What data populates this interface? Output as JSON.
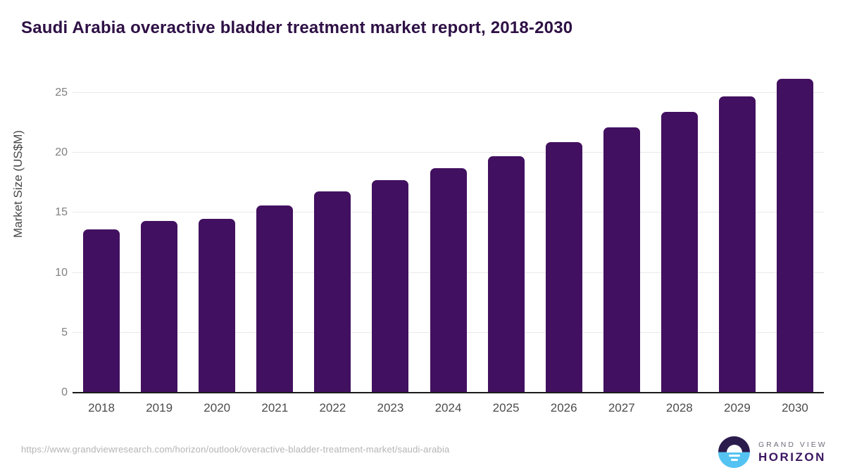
{
  "header": {
    "title": "Saudi Arabia overactive bladder treatment market report, 2018-2030"
  },
  "chart_data": {
    "type": "bar",
    "title": "Saudi Arabia overactive bladder treatment market report, 2018-2030",
    "xlabel": "",
    "ylabel": "Market Size (US$M)",
    "categories": [
      "2018",
      "2019",
      "2020",
      "2021",
      "2022",
      "2023",
      "2024",
      "2025",
      "2026",
      "2027",
      "2028",
      "2029",
      "2030"
    ],
    "values": [
      13.6,
      14.3,
      14.5,
      15.6,
      16.8,
      17.7,
      18.7,
      19.7,
      20.9,
      22.1,
      23.4,
      24.7,
      26.2
    ],
    "ylim": [
      0,
      27
    ],
    "yticks": [
      0,
      5,
      10,
      15,
      20,
      25
    ],
    "grid": "horizontal",
    "legend": "none",
    "bar_color": "#421060"
  },
  "footer": {
    "source_url": "https://www.grandviewresearch.com/horizon/outlook/overactive-bladder-treatment-market/saudi-arabia",
    "logo": {
      "line1": "GRAND VIEW",
      "line2": "HORIZON"
    }
  },
  "colors": {
    "bar": "#421060",
    "title_text": "#2e1045",
    "axis_line": "#1c1c1c",
    "gridline": "#e9e9e9",
    "tick_text": "#808080",
    "year_text": "#4c4c4c",
    "url_text": "#b4b4b4",
    "logo_purple": "#2b1b4d",
    "logo_blue": "#55c3f2",
    "logo_horizon_text": "#3b1660"
  }
}
